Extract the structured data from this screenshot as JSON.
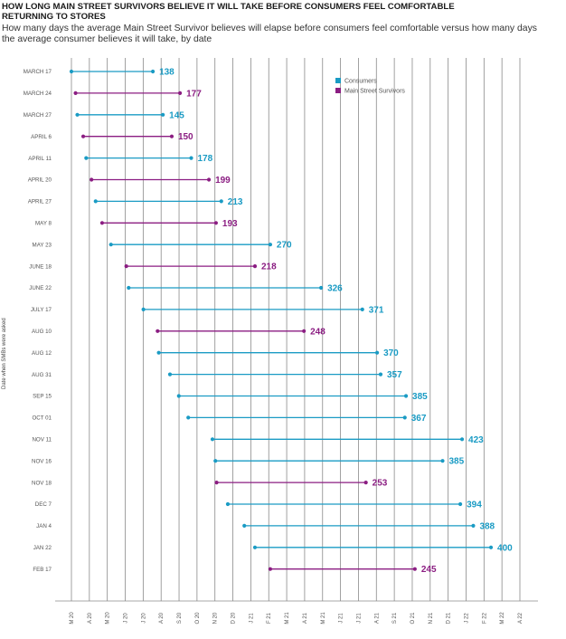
{
  "title": "HOW LONG MAIN STREET SURVIVORS BELIEVE IT WILL TAKE BEFORE CONSUMERS FEEL COMFORTABLE RETURNING TO STORES",
  "subtitle": "How many days the average Main Street Survivor believes will elapse before consumers feel comfortable versus how many days the average consumer believes it will take, by date",
  "colors": {
    "consumers": "#1a9bc4",
    "survivors": "#8b1d82",
    "grid": "#8a8a8a",
    "text": "#555555"
  },
  "chart_data": {
    "type": "dumbbell",
    "title": "HOW LONG MAIN STREET SURVIVORS BELIEVE IT WILL TAKE BEFORE CONSUMERS FEEL COMFORTABLE RETURNING TO STORES",
    "ylabel": "Date when SMBs were asked",
    "xlabel": "",
    "x_ticks": [
      "M 20",
      "A 20",
      "M 20",
      "J 20",
      "J 20",
      "A 20",
      "S 20",
      "O 20",
      "N 20",
      "D 20",
      "J 21",
      "F 21",
      "M 21",
      "A 21",
      "M 21",
      "J 21",
      "J 21",
      "A 21",
      "S 21",
      "O 21",
      "N 21",
      "D 21",
      "J 22",
      "F 22",
      "M 22",
      "A 22"
    ],
    "legend": {
      "position": "top-right",
      "items": [
        {
          "name": "Consumers",
          "key": "consumers"
        },
        {
          "name": "Main Street Survivors",
          "key": "survivors"
        }
      ]
    },
    "rows": [
      {
        "date": "MARCH 17",
        "start": 0,
        "days": 138,
        "label": "138",
        "series": "consumers"
      },
      {
        "date": "MARCH 24",
        "start": 7,
        "days": 177,
        "label": "177",
        "series": "survivors"
      },
      {
        "date": "MARCH 27",
        "start": 10,
        "days": 145,
        "label": "145",
        "series": "consumers"
      },
      {
        "date": "APRIL 6",
        "start": 20,
        "days": 150,
        "label": "150",
        "series": "survivors"
      },
      {
        "date": "APRIL 11",
        "start": 25,
        "days": 178,
        "label": "178",
        "series": "consumers"
      },
      {
        "date": "APRIL 20",
        "start": 34,
        "days": 199,
        "label": "199",
        "series": "survivors"
      },
      {
        "date": "APRIL 27",
        "start": 41,
        "days": 213,
        "label": "213",
        "series": "consumers"
      },
      {
        "date": "MAY 8",
        "start": 52,
        "days": 193,
        "label": "193",
        "series": "survivors"
      },
      {
        "date": "MAY 23",
        "start": 67,
        "days": 270,
        "label": "270",
        "series": "consumers"
      },
      {
        "date": "JUNE 18",
        "start": 93,
        "days": 218,
        "label": "218",
        "series": "survivors"
      },
      {
        "date": "JUNE 22",
        "start": 97,
        "days": 326,
        "label": "326",
        "series": "consumers"
      },
      {
        "date": "JULY 17",
        "start": 122,
        "days": 371,
        "label": "371",
        "series": "consumers"
      },
      {
        "date": "AUG 10",
        "start": 146,
        "days": 248,
        "label": "248",
        "series": "survivors"
      },
      {
        "date": "AUG 12",
        "start": 148,
        "days": 370,
        "label": "370",
        "series": "consumers"
      },
      {
        "date": "AUG 31",
        "start": 167,
        "days": 357,
        "label": "357",
        "series": "consumers"
      },
      {
        "date": "SEP 15",
        "start": 182,
        "days": 385,
        "label": "385",
        "series": "consumers"
      },
      {
        "date": "OCT 01",
        "start": 198,
        "days": 367,
        "label": "367",
        "series": "consumers"
      },
      {
        "date": "NOV 11",
        "start": 239,
        "days": 423,
        "label": "423",
        "series": "consumers"
      },
      {
        "date": "NOV 16",
        "start": 244,
        "days": 385,
        "label": "385",
        "series": "consumers"
      },
      {
        "date": "NOV 18",
        "start": 246,
        "days": 253,
        "label": "253",
        "series": "survivors"
      },
      {
        "date": "DEC 7",
        "start": 265,
        "days": 394,
        "label": "394",
        "series": "consumers"
      },
      {
        "date": "JAN 4",
        "start": 293,
        "days": 388,
        "label": "388",
        "series": "consumers"
      },
      {
        "date": "JAN 22",
        "start": 311,
        "days": 400,
        "label": "400",
        "series": "consumers"
      },
      {
        "date": "FEB 17",
        "start": 337,
        "days": 245,
        "label": "245",
        "series": "survivors"
      }
    ]
  }
}
